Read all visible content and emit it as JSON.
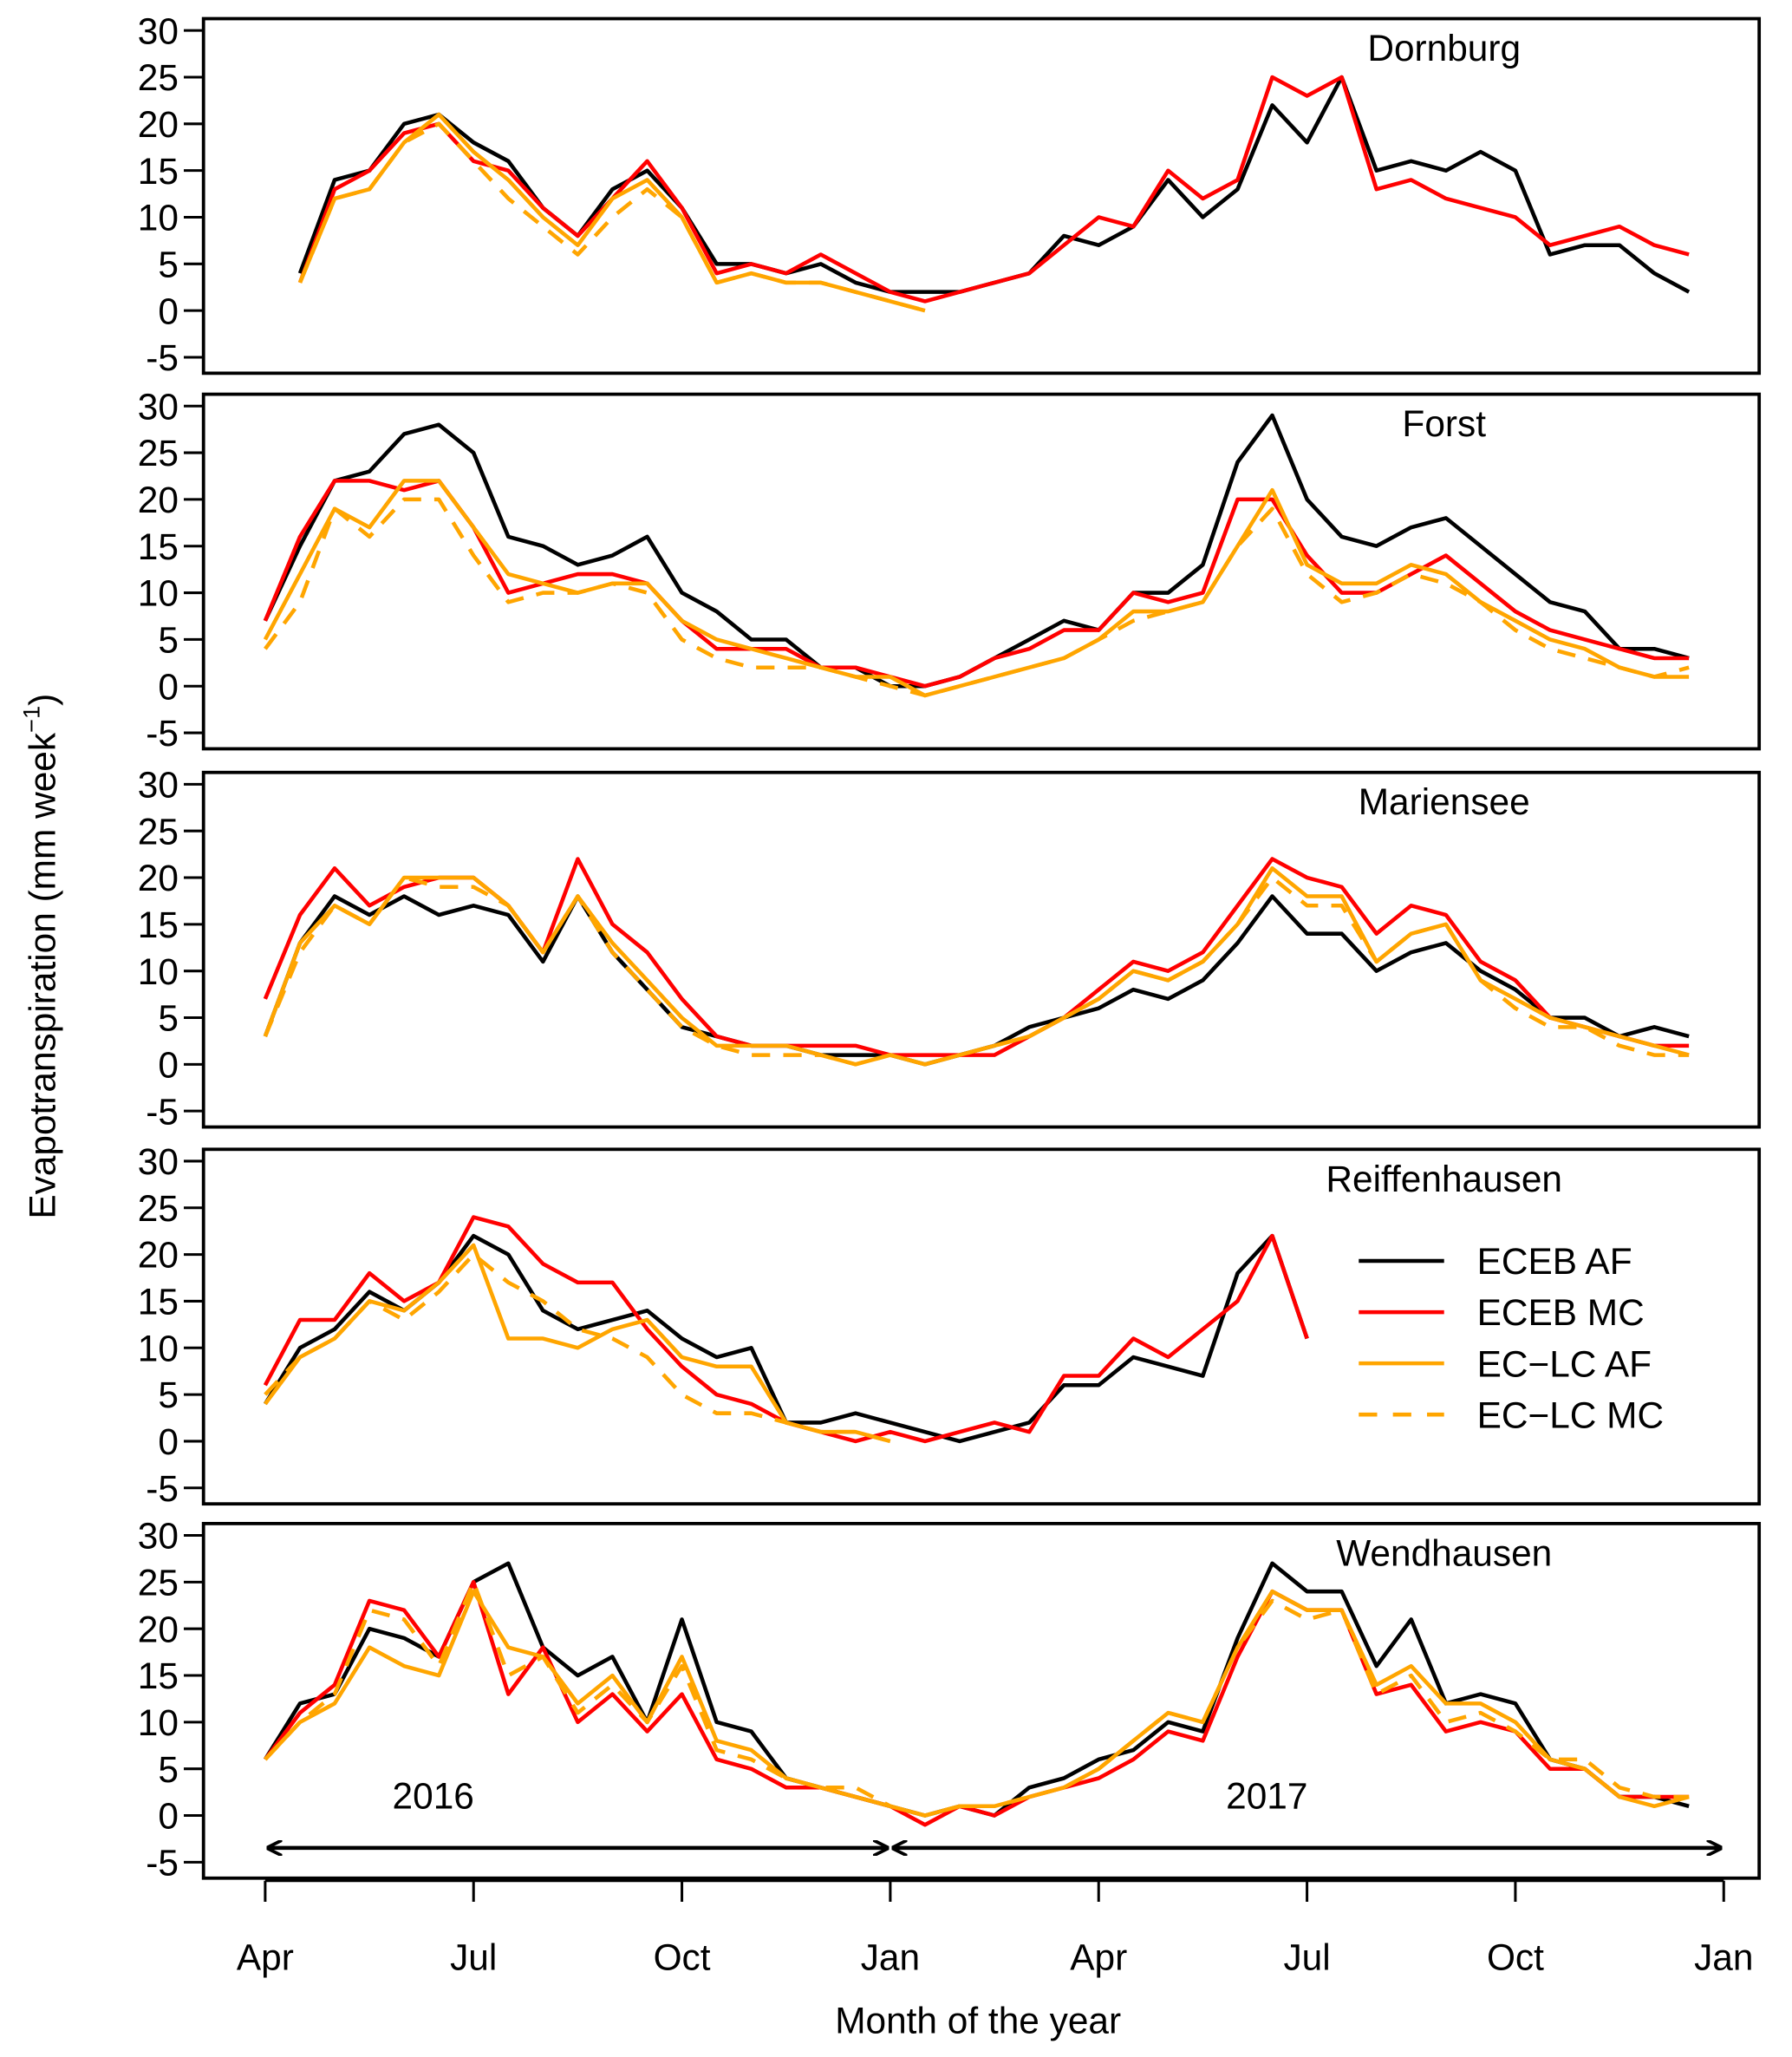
{
  "chart_data": {
    "type": "line",
    "xlabel": "Month of the year",
    "ylabel": "Evapotranspiration (mm week",
    "ylabel_sup": "−1",
    "ylabel_close": ")",
    "x_unit": "months since Apr 2016",
    "xlim": [
      0,
      21
    ],
    "ylim": [
      -5,
      30
    ],
    "yticks": [
      "-5",
      "0",
      "5",
      "10",
      "15",
      "20",
      "25",
      "30"
    ],
    "ytick_values": [
      -5,
      0,
      5,
      10,
      15,
      20,
      25,
      30
    ],
    "xticks": [
      "Apr",
      "Jul",
      "Oct",
      "Jan",
      "Apr",
      "Jul",
      "Oct",
      "Jan"
    ],
    "xtick_values": [
      0,
      3,
      6,
      9,
      12,
      15,
      18,
      21
    ],
    "annotations": [
      {
        "text": "2016",
        "from": 0,
        "to": 9
      },
      {
        "text": "2017",
        "from": 9,
        "to": 21
      }
    ],
    "legend": {
      "placement": "panel-4-right",
      "entries": [
        {
          "name": "ECEB AF",
          "color": "#000000",
          "dash": false
        },
        {
          "name": "ECEB MC",
          "color": "#ff0000",
          "dash": false
        },
        {
          "name": "EC−LC AF",
          "color": "#ffa500",
          "dash": false
        },
        {
          "name": "EC−LC MC",
          "color": "#ffa500",
          "dash": true
        }
      ]
    },
    "panels": [
      {
        "title": "Dornburg",
        "x0": 0.5,
        "step": 0.5,
        "series": [
          {
            "name": "ECEB AF",
            "values": [
              4,
              14,
              15,
              20,
              21,
              18,
              16,
              11,
              8,
              13,
              15,
              11,
              5,
              5,
              4,
              5,
              3,
              2,
              2,
              2,
              3,
              4,
              8,
              7,
              9,
              14,
              10,
              13,
              22,
              18,
              25,
              15,
              16,
              15,
              17,
              15,
              6,
              7,
              7,
              4,
              2
            ]
          },
          {
            "name": "ECEB MC",
            "values": [
              3,
              13,
              15,
              19,
              20,
              16,
              15,
              11,
              8,
              12,
              16,
              11,
              4,
              5,
              4,
              6,
              4,
              2,
              1,
              2,
              3,
              4,
              7,
              10,
              9,
              15,
              12,
              14,
              25,
              23,
              25,
              13,
              14,
              12,
              11,
              10,
              7,
              8,
              9,
              7,
              6
            ]
          },
          {
            "name": "EC−LC AF",
            "values": [
              3,
              12,
              13,
              18,
              21,
              17,
              14,
              10,
              7,
              12,
              14,
              10,
              3,
              4,
              3,
              3,
              2,
              1,
              0
            ]
          },
          {
            "name": "EC−LC MC",
            "values": [
              3,
              12,
              13,
              18,
              20,
              16,
              12,
              9,
              6,
              10,
              13,
              10,
              3,
              4,
              3,
              3,
              2,
              1,
              0
            ]
          }
        ]
      },
      {
        "title": "Forst",
        "x0": 0,
        "step": 0.5,
        "series": [
          {
            "name": "ECEB AF",
            "values": [
              7,
              15,
              22,
              23,
              27,
              28,
              25,
              16,
              15,
              13,
              14,
              16,
              10,
              8,
              5,
              5,
              2,
              2,
              0,
              0,
              1,
              3,
              5,
              7,
              6,
              10,
              10,
              13,
              24,
              29,
              20,
              16,
              15,
              17,
              18,
              15,
              12,
              9,
              8,
              4,
              4,
              3
            ]
          },
          {
            "name": "ECEB MC",
            "values": [
              7,
              16,
              22,
              22,
              21,
              22,
              17,
              10,
              11,
              12,
              12,
              11,
              7,
              4,
              4,
              4,
              2,
              2,
              1,
              0,
              1,
              3,
              4,
              6,
              6,
              10,
              9,
              10,
              20,
              20,
              14,
              10,
              10,
              12,
              14,
              11,
              8,
              6,
              5,
              4,
              3,
              3
            ]
          },
          {
            "name": "EC−LC AF",
            "values": [
              5,
              12,
              19,
              17,
              22,
              22,
              17,
              12,
              11,
              10,
              11,
              11,
              7,
              5,
              4,
              3,
              2,
              1,
              1,
              -1,
              0,
              1,
              2,
              3,
              5,
              8,
              8,
              9,
              15,
              21,
              13,
              11,
              11,
              13,
              12,
              9,
              7,
              5,
              4,
              2,
              1,
              1
            ]
          },
          {
            "name": "EC−LC MC",
            "values": [
              4,
              9,
              19,
              16,
              20,
              20,
              14,
              9,
              10,
              10,
              11,
              10,
              5,
              3,
              2,
              2,
              2,
              1,
              0,
              -1,
              0,
              1,
              2,
              3,
              5,
              7,
              8,
              9,
              15,
              19,
              12,
              9,
              10,
              12,
              11,
              9,
              6,
              4,
              3,
              2,
              1,
              2
            ]
          }
        ]
      },
      {
        "title": "Mariensee",
        "x0": 0,
        "step": 0.5,
        "series": [
          {
            "name": "ECEB AF",
            "values": [
              3,
              13,
              18,
              16,
              18,
              16,
              17,
              16,
              11,
              18,
              12,
              8,
              4,
              3,
              2,
              2,
              1,
              1,
              1,
              0,
              1,
              2,
              4,
              5,
              6,
              8,
              7,
              9,
              13,
              18,
              14,
              14,
              10,
              12,
              13,
              10,
              8,
              5,
              5,
              3,
              4,
              3
            ]
          },
          {
            "name": "ECEB MC",
            "values": [
              7,
              16,
              21,
              17,
              19,
              20,
              20,
              17,
              12,
              22,
              15,
              12,
              7,
              3,
              2,
              2,
              2,
              2,
              1,
              1,
              1,
              1,
              3,
              5,
              8,
              11,
              10,
              12,
              17,
              22,
              20,
              19,
              14,
              17,
              16,
              11,
              9,
              5,
              4,
              3,
              2,
              2
            ]
          },
          {
            "name": "EC−LC AF",
            "values": [
              3,
              13,
              17,
              15,
              20,
              20,
              20,
              17,
              12,
              18,
              13,
              9,
              5,
              2,
              2,
              2,
              1,
              0,
              1,
              0,
              1,
              2,
              3,
              5,
              7,
              10,
              9,
              11,
              15,
              21,
              18,
              18,
              11,
              14,
              15,
              9,
              7,
              5,
              4,
              3,
              2,
              1
            ]
          },
          {
            "name": "EC−LC MC",
            "values": [
              3,
              12,
              17,
              15,
              20,
              19,
              19,
              17,
              12,
              18,
              12,
              8,
              4,
              2,
              1,
              1,
              1,
              0,
              1,
              0,
              1,
              2,
              3,
              5,
              7,
              10,
              9,
              11,
              15,
              20,
              17,
              17,
              11,
              14,
              15,
              9,
              6,
              4,
              4,
              2,
              1,
              1
            ]
          }
        ]
      },
      {
        "title": "Reiffenhausen",
        "x0": 0,
        "step": 0.5,
        "series": [
          {
            "name": "ECEB AF",
            "values": [
              4,
              10,
              12,
              16,
              14,
              17,
              22,
              20,
              14,
              12,
              13,
              14,
              11,
              9,
              10,
              2,
              2,
              3,
              2,
              1,
              0,
              1,
              2,
              6,
              6,
              9,
              8,
              7,
              18,
              22,
              11
            ]
          },
          {
            "name": "ECEB MC",
            "values": [
              6,
              13,
              13,
              18,
              15,
              17,
              24,
              23,
              19,
              17,
              17,
              12,
              8,
              5,
              4,
              2,
              1,
              0,
              1,
              0,
              1,
              2,
              1,
              7,
              7,
              11,
              9,
              12,
              15,
              22,
              11
            ]
          },
          {
            "name": "EC−LC AF",
            "values": [
              4,
              9,
              11,
              15,
              14,
              17,
              21,
              11,
              11,
              10,
              12,
              13,
              9,
              8,
              8,
              2,
              1,
              1,
              0
            ]
          },
          {
            "name": "EC−LC MC",
            "values": [
              5,
              9,
              11,
              15,
              13,
              16,
              20,
              17,
              15,
              12,
              11,
              9,
              5,
              3,
              3,
              2,
              1,
              1,
              0
            ]
          }
        ]
      },
      {
        "title": "Wendhausen",
        "x0": 0,
        "step": 0.5,
        "series": [
          {
            "name": "ECEB AF",
            "values": [
              6,
              12,
              13,
              20,
              19,
              17,
              25,
              27,
              18,
              15,
              17,
              10,
              21,
              10,
              9,
              4,
              3,
              2,
              1,
              0,
              1,
              0,
              3,
              4,
              6,
              7,
              10,
              9,
              19,
              27,
              24,
              24,
              16,
              21,
              12,
              13,
              12,
              6,
              5,
              2,
              2,
              1
            ]
          },
          {
            "name": "ECEB MC",
            "values": [
              6,
              11,
              14,
              23,
              22,
              17,
              25,
              13,
              18,
              10,
              13,
              9,
              13,
              6,
              5,
              3,
              3,
              2,
              1,
              -1,
              1,
              0,
              2,
              3,
              4,
              6,
              9,
              8,
              17,
              24,
              22,
              22,
              13,
              14,
              9,
              10,
              9,
              5,
              5,
              2,
              2,
              2
            ]
          },
          {
            "name": "EC−LC AF",
            "values": [
              6,
              10,
              12,
              18,
              16,
              15,
              24,
              18,
              17,
              12,
              15,
              10,
              17,
              8,
              7,
              4,
              3,
              2,
              1,
              0,
              1,
              1,
              2,
              3,
              5,
              8,
              11,
              10,
              18,
              24,
              22,
              22,
              14,
              16,
              12,
              12,
              10,
              6,
              5,
              2,
              1,
              2
            ]
          },
          {
            "name": "EC−LC MC",
            "values": [
              6,
              10,
              13,
              22,
              21,
              16,
              25,
              15,
              17,
              11,
              14,
              10,
              16,
              7,
              6,
              4,
              3,
              3,
              1,
              0,
              1,
              1,
              2,
              3,
              5,
              8,
              11,
              10,
              18,
              23,
              21,
              22,
              13,
              15,
              10,
              11,
              9,
              6,
              6,
              3,
              2,
              2
            ]
          }
        ]
      }
    ]
  }
}
